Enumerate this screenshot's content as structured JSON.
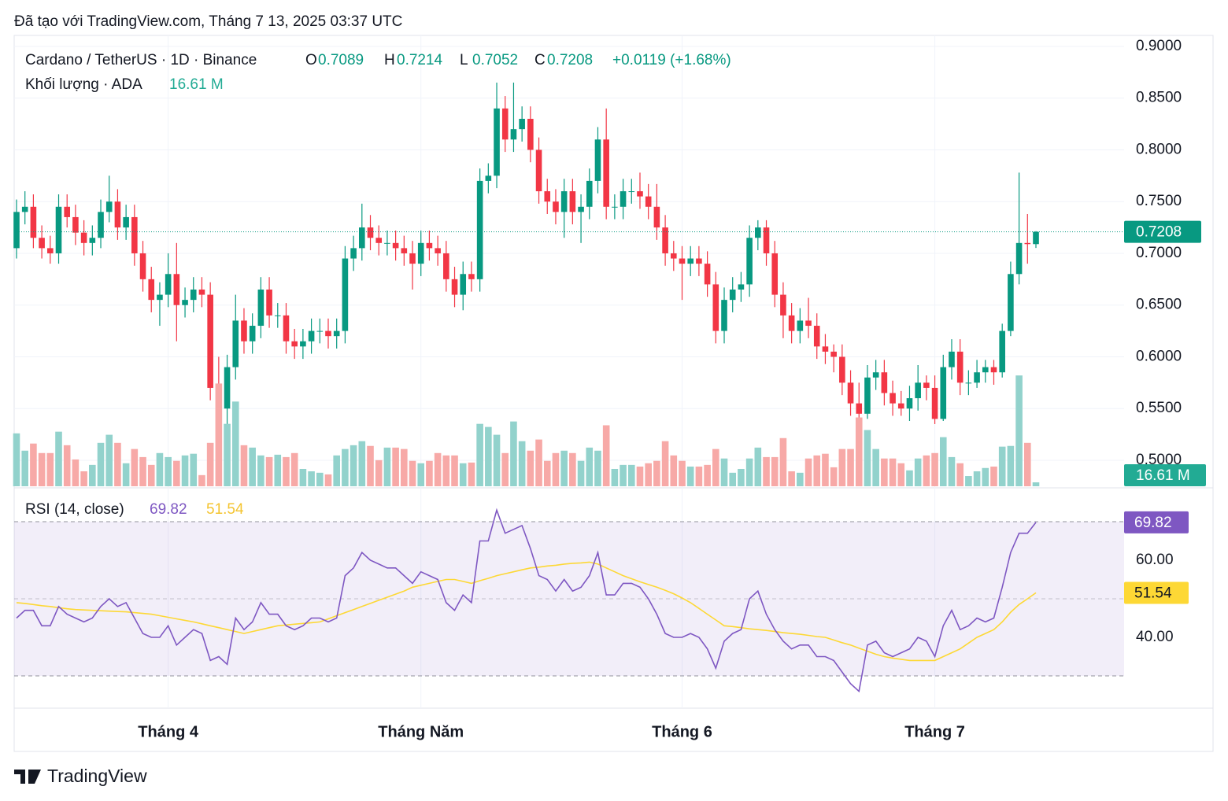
{
  "chart_data": {
    "type": "candlestick",
    "created": "Đã tạo với TradingView.com, Tháng 7 13, 2025 03:37 UTC",
    "title": "Cardano / TetherUS · 1D · Binance",
    "ohlc_letters": [
      "O",
      "H",
      "L",
      "C"
    ],
    "change": "+0.0119 (+1.68%)",
    "volume_title": "Khối lượng · ADA",
    "volume_label": "16.61 M",
    "logo": "TradingView",
    "up_color": "#089981",
    "down_color": "#f23645",
    "volume_up_color": "#92d2cc",
    "volume_down_color": "#f7a9a7",
    "categories": [
      null,
      null,
      null,
      null,
      null,
      null,
      null,
      null,
      null,
      null,
      null,
      null,
      null,
      null,
      null,
      null,
      null,
      null,
      "Tháng 4",
      null,
      null,
      null,
      null,
      null,
      null,
      null,
      null,
      null,
      null,
      null,
      null,
      null,
      null,
      null,
      null,
      null,
      null,
      null,
      null,
      null,
      null,
      null,
      null,
      null,
      null,
      null,
      null,
      null,
      "Tháng Năm",
      null,
      null,
      null,
      null,
      null,
      null,
      null,
      null,
      null,
      null,
      null,
      null,
      null,
      null,
      null,
      null,
      null,
      null,
      null,
      null,
      null,
      null,
      null,
      null,
      null,
      null,
      null,
      null,
      null,
      null,
      "Tháng 6",
      null,
      null,
      null,
      null,
      null,
      null,
      null,
      null,
      null,
      null,
      null,
      null,
      null,
      null,
      null,
      null,
      null,
      null,
      null,
      null,
      null,
      null,
      null,
      null,
      null,
      null,
      null,
      null,
      null,
      "Tháng 7",
      null,
      null,
      null,
      null,
      null,
      null,
      null,
      null,
      null,
      null,
      null,
      null
    ],
    "open": [
      0.705,
      0.74,
      0.745,
      0.715,
      0.705,
      0.7,
      0.745,
      0.735,
      0.72,
      0.71,
      0.715,
      0.74,
      0.75,
      0.725,
      0.735,
      0.7,
      0.675,
      0.655,
      0.66,
      0.68,
      0.65,
      0.655,
      0.665,
      0.66,
      0.57,
      0.55,
      0.59,
      0.635,
      0.615,
      0.63,
      0.665,
      0.64,
      0.64,
      0.615,
      0.61,
      0.615,
      0.625,
      0.625,
      0.62,
      0.625,
      0.695,
      0.705,
      0.725,
      0.715,
      0.71,
      0.71,
      0.705,
      0.7,
      0.69,
      0.71,
      0.705,
      0.7,
      0.675,
      0.66,
      0.68,
      0.675,
      0.77,
      0.775,
      0.84,
      0.81,
      0.82,
      0.83,
      0.8,
      0.76,
      0.75,
      0.74,
      0.76,
      0.74,
      0.745,
      0.77,
      0.81,
      0.745,
      0.745,
      0.76,
      0.76,
      0.755,
      0.745,
      0.725,
      0.7,
      0.695,
      0.69,
      0.695,
      0.69,
      0.67,
      0.625,
      0.655,
      0.665,
      0.67,
      0.715,
      0.725,
      0.7,
      0.66,
      0.64,
      0.625,
      0.635,
      0.63,
      0.61,
      0.605,
      0.6,
      0.575,
      0.555,
      0.545,
      0.58,
      0.585,
      0.565,
      0.555,
      0.55,
      0.56,
      0.575,
      0.57,
      0.54,
      0.59,
      0.605,
      0.575,
      0.575,
      0.585,
      0.59,
      0.585,
      0.625,
      0.68,
      0.71,
      0.7089
    ],
    "high": [
      0.752,
      0.76,
      0.757,
      0.727,
      0.717,
      0.757,
      0.757,
      0.747,
      0.732,
      0.727,
      0.752,
      0.775,
      0.762,
      0.747,
      0.747,
      0.712,
      0.687,
      0.672,
      0.7,
      0.71,
      0.667,
      0.677,
      0.677,
      0.672,
      0.6,
      0.602,
      0.66,
      0.647,
      0.642,
      0.677,
      0.677,
      0.652,
      0.652,
      0.627,
      0.627,
      0.637,
      0.637,
      0.637,
      0.637,
      0.707,
      0.717,
      0.748,
      0.737,
      0.727,
      0.722,
      0.722,
      0.717,
      0.712,
      0.722,
      0.722,
      0.717,
      0.712,
      0.687,
      0.692,
      0.692,
      0.782,
      0.787,
      0.865,
      0.852,
      0.865,
      0.842,
      0.842,
      0.812,
      0.772,
      0.762,
      0.772,
      0.772,
      0.757,
      0.782,
      0.822,
      0.84,
      0.757,
      0.772,
      0.772,
      0.778,
      0.767,
      0.767,
      0.737,
      0.712,
      0.707,
      0.707,
      0.707,
      0.702,
      0.682,
      0.667,
      0.677,
      0.682,
      0.727,
      0.732,
      0.732,
      0.712,
      0.672,
      0.652,
      0.647,
      0.657,
      0.642,
      0.622,
      0.612,
      0.612,
      0.587,
      0.575,
      0.592,
      0.597,
      0.597,
      0.577,
      0.567,
      0.572,
      0.592,
      0.582,
      0.582,
      0.602,
      0.617,
      0.617,
      0.587,
      0.597,
      0.597,
      0.597,
      0.632,
      0.692,
      0.778,
      0.738,
      0.7214
    ],
    "low": [
      0.695,
      0.728,
      0.705,
      0.695,
      0.69,
      0.69,
      0.725,
      0.708,
      0.698,
      0.698,
      0.705,
      0.73,
      0.713,
      0.713,
      0.688,
      0.663,
      0.643,
      0.63,
      0.648,
      0.615,
      0.638,
      0.643,
      0.648,
      0.558,
      0.53,
      0.534,
      0.578,
      0.603,
      0.603,
      0.618,
      0.628,
      0.628,
      0.603,
      0.598,
      0.598,
      0.603,
      0.613,
      0.608,
      0.608,
      0.613,
      0.683,
      0.693,
      0.703,
      0.698,
      0.698,
      0.693,
      0.688,
      0.665,
      0.678,
      0.693,
      0.688,
      0.663,
      0.648,
      0.645,
      0.663,
      0.663,
      0.758,
      0.763,
      0.798,
      0.798,
      0.808,
      0.788,
      0.748,
      0.738,
      0.728,
      0.715,
      0.728,
      0.71,
      0.733,
      0.758,
      0.733,
      0.733,
      0.733,
      0.748,
      0.743,
      0.733,
      0.713,
      0.688,
      0.683,
      0.655,
      0.678,
      0.678,
      0.658,
      0.613,
      0.613,
      0.643,
      0.653,
      0.658,
      0.703,
      0.688,
      0.648,
      0.618,
      0.613,
      0.613,
      0.618,
      0.598,
      0.593,
      0.585,
      0.563,
      0.543,
      0.533,
      0.54,
      0.568,
      0.553,
      0.543,
      0.543,
      0.538,
      0.548,
      0.558,
      0.535,
      0.538,
      0.578,
      0.563,
      0.563,
      0.57,
      0.575,
      0.573,
      0.58,
      0.62,
      0.67,
      0.69,
      0.7052
    ],
    "close": [
      0.74,
      0.745,
      0.715,
      0.705,
      0.7,
      0.745,
      0.735,
      0.72,
      0.71,
      0.715,
      0.74,
      0.75,
      0.725,
      0.735,
      0.7,
      0.675,
      0.655,
      0.66,
      0.68,
      0.65,
      0.655,
      0.665,
      0.66,
      0.57,
      0.55,
      0.59,
      0.635,
      0.615,
      0.63,
      0.665,
      0.64,
      0.64,
      0.615,
      0.61,
      0.615,
      0.625,
      0.625,
      0.62,
      0.625,
      0.695,
      0.705,
      0.725,
      0.715,
      0.71,
      0.71,
      0.705,
      0.7,
      0.69,
      0.71,
      0.705,
      0.7,
      0.675,
      0.66,
      0.68,
      0.675,
      0.77,
      0.775,
      0.84,
      0.81,
      0.82,
      0.83,
      0.8,
      0.76,
      0.75,
      0.74,
      0.76,
      0.74,
      0.745,
      0.77,
      0.81,
      0.745,
      0.745,
      0.76,
      0.76,
      0.755,
      0.745,
      0.725,
      0.7,
      0.695,
      0.69,
      0.695,
      0.69,
      0.67,
      0.625,
      0.655,
      0.665,
      0.67,
      0.715,
      0.725,
      0.7,
      0.66,
      0.64,
      0.625,
      0.635,
      0.63,
      0.61,
      0.605,
      0.6,
      0.575,
      0.555,
      0.545,
      0.58,
      0.585,
      0.565,
      0.555,
      0.55,
      0.56,
      0.575,
      0.57,
      0.54,
      0.59,
      0.605,
      0.575,
      0.575,
      0.585,
      0.59,
      0.585,
      0.625,
      0.68,
      0.71,
      0.7089,
      0.7208
    ],
    "volume": [
      223,
      150,
      180,
      140,
      140,
      230,
      173,
      113,
      63,
      90,
      183,
      217,
      183,
      97,
      157,
      123,
      90,
      140,
      123,
      107,
      130,
      137,
      47,
      183,
      433,
      263,
      357,
      173,
      163,
      130,
      123,
      133,
      123,
      140,
      73,
      63,
      57,
      50,
      130,
      157,
      173,
      190,
      170,
      110,
      163,
      163,
      157,
      107,
      97,
      107,
      140,
      130,
      130,
      97,
      100,
      263,
      250,
      217,
      140,
      273,
      190,
      150,
      197,
      107,
      140,
      150,
      140,
      107,
      163,
      150,
      257,
      73,
      90,
      90,
      83,
      97,
      107,
      190,
      130,
      107,
      83,
      83,
      90,
      157,
      117,
      57,
      73,
      117,
      163,
      123,
      123,
      203,
      63,
      57,
      117,
      130,
      137,
      80,
      157,
      157,
      290,
      237,
      157,
      117,
      117,
      97,
      67,
      117,
      130,
      140,
      207,
      123,
      97,
      43,
      63,
      77,
      83,
      167,
      170,
      467,
      183,
      16.61
    ],
    "ylim": [
      0.4749,
      0.9106
    ],
    "yticks": [
      {
        "value": 0.5,
        "label": "0.5000"
      },
      {
        "value": 0.55,
        "label": "0.5500"
      },
      {
        "value": 0.6,
        "label": "0.6000"
      },
      {
        "value": 0.65,
        "label": "0.6500"
      },
      {
        "value": 0.7,
        "label": "0.7000"
      },
      {
        "value": 0.75,
        "label": "0.7500"
      },
      {
        "value": 0.8,
        "label": "0.8000"
      },
      {
        "value": 0.85,
        "label": "0.8500"
      },
      {
        "value": 0.9,
        "label": "0.9000"
      }
    ],
    "volume_ylim": [
      0,
      1900
    ],
    "grid": true,
    "rsi": {
      "title": "RSI (14, close)",
      "color": "#7e57c2",
      "ma_color": "#fdd835",
      "ylim": [
        21.63,
        78.57
      ],
      "yticks": [
        {
          "value": 60,
          "label": "60.00"
        },
        {
          "value": 40,
          "label": "40.00"
        }
      ],
      "bands": [
        30,
        50,
        70
      ],
      "values": [
        45,
        47,
        47,
        43,
        43,
        48,
        46,
        45,
        44,
        45,
        48,
        50,
        48,
        49,
        45,
        41,
        40,
        40,
        43,
        38,
        40,
        42,
        41,
        34,
        35,
        33,
        45,
        42,
        44,
        49,
        46,
        46,
        43,
        42,
        43,
        45,
        45,
        44,
        45,
        56,
        58,
        62,
        60,
        59,
        58,
        58,
        56,
        54,
        57,
        56,
        55,
        49,
        47,
        51,
        49,
        65,
        65,
        73,
        67,
        68,
        69,
        63,
        56,
        55,
        52,
        55,
        52,
        53,
        56,
        62,
        51,
        51,
        54,
        54,
        53,
        50,
        46,
        41,
        40,
        40,
        41,
        40,
        37,
        32,
        39,
        41,
        42,
        50,
        52,
        46,
        42,
        39,
        37,
        38,
        38,
        35,
        35,
        34,
        31,
        28,
        26,
        38,
        39,
        36,
        35,
        36,
        37,
        40,
        39,
        35,
        43,
        47,
        42,
        43,
        45,
        44,
        45,
        53,
        62,
        67,
        67,
        69.82
      ],
      "ma_values": [
        49,
        48.8,
        48.5,
        48.2,
        48,
        47.7,
        47.4,
        47.2,
        47.1,
        47,
        46.9,
        46.8,
        46.7,
        46.6,
        46.4,
        46.2,
        46,
        45.6,
        45.2,
        44.8,
        44.4,
        44,
        43.5,
        43,
        42.5,
        42,
        41.5,
        41,
        41.5,
        42,
        42.5,
        43,
        43.2,
        43.4,
        43.6,
        43.8,
        44,
        44.8,
        45.6,
        46.4,
        47.2,
        48,
        48.8,
        49.6,
        50.4,
        51.2,
        52,
        53,
        53.5,
        54,
        54.5,
        55,
        55,
        54.5,
        54,
        54.7,
        55.3,
        56,
        56.5,
        57,
        57.5,
        58,
        58.2,
        58.5,
        58.7,
        59,
        59.2,
        59.3,
        59.5,
        59,
        58,
        57,
        56,
        55.2,
        54.4,
        53.7,
        53,
        52.2,
        51.3,
        50.2,
        49,
        47.5,
        46,
        44.5,
        43,
        42.8,
        42.5,
        42.2,
        42,
        41.8,
        41.5,
        41.2,
        41,
        40.8,
        40.5,
        40.2,
        40,
        39.3,
        38.6,
        38,
        37.2,
        36.4,
        35.6,
        35,
        34.6,
        34.3,
        34,
        34,
        34,
        34,
        35,
        36,
        37,
        38.5,
        40,
        41,
        42,
        44,
        46.5,
        48.5,
        50,
        51.54
      ]
    }
  }
}
